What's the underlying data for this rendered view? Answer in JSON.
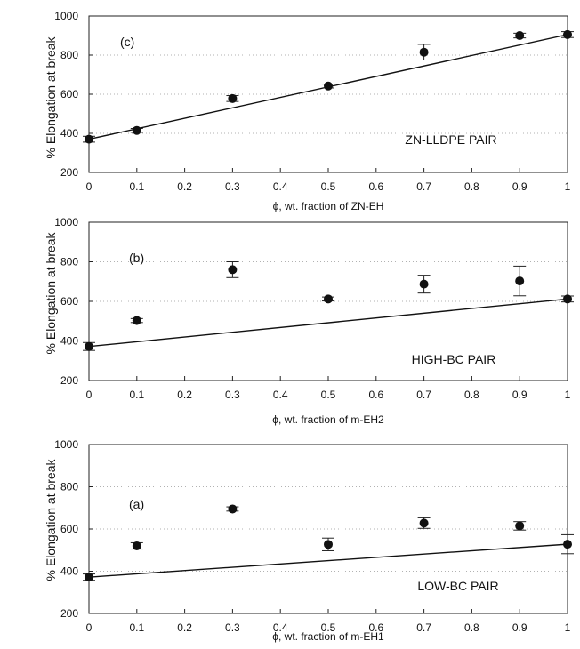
{
  "figure": {
    "ylabel": "% Elongation at break"
  },
  "chart_data": [
    {
      "type": "scatter",
      "panel": "(c)",
      "pair_label": "ZN-LLDPE PAIR",
      "xlabel": "ϕ, wt. fraction of ZN-EH",
      "ylabel": "% Elongation at break",
      "xlim": [
        0,
        1
      ],
      "ylim": [
        200,
        1000
      ],
      "xticks": [
        "0",
        "0.1",
        "0.2",
        "0.3",
        "0.4",
        "0.5",
        "0.6",
        "0.7",
        "0.8",
        "0.9",
        "1"
      ],
      "yticks": [
        "200",
        "400",
        "600",
        "800",
        "1000"
      ],
      "x": [
        0,
        0.1,
        0.3,
        0.5,
        0.7,
        0.9,
        1.0
      ],
      "y": [
        370,
        415,
        578,
        642,
        815,
        900,
        905
      ],
      "err": [
        15,
        10,
        15,
        10,
        40,
        12,
        15
      ],
      "trend": {
        "x": [
          0,
          1
        ],
        "y": [
          370,
          905
        ]
      }
    },
    {
      "type": "scatter",
      "panel": "(b)",
      "pair_label": "HIGH-BC PAIR",
      "xlabel": "ϕ, wt. fraction of m-EH2",
      "ylabel": "% Elongation at break",
      "xlim": [
        0,
        1
      ],
      "ylim": [
        200,
        1000
      ],
      "xticks": [
        "0",
        "0.1",
        "0.2",
        "0.3",
        "0.4",
        "0.5",
        "0.6",
        "0.7",
        "0.8",
        "0.9",
        "1"
      ],
      "yticks": [
        "200",
        "400",
        "600",
        "800",
        "1000"
      ],
      "x": [
        0,
        0.1,
        0.3,
        0.5,
        0.7,
        0.9,
        1.0
      ],
      "y": [
        372,
        503,
        760,
        612,
        687,
        703,
        612
      ],
      "err": [
        20,
        10,
        40,
        10,
        45,
        75,
        15
      ],
      "trend": {
        "x": [
          0,
          1
        ],
        "y": [
          372,
          612
        ]
      }
    },
    {
      "type": "scatter",
      "panel": "(a)",
      "pair_label": "LOW-BC PAIR",
      "xlabel": "ϕ, wt. fraction of m-EH1",
      "ylabel": "% Elongation at break",
      "xlim": [
        0,
        1
      ],
      "ylim": [
        200,
        1000
      ],
      "xticks": [
        "0",
        "0.1",
        "0.2",
        "0.3",
        "0.4",
        "0.5",
        "0.6",
        "0.7",
        "0.8",
        "0.9",
        "1"
      ],
      "yticks": [
        "200",
        "400",
        "600",
        "800",
        "1000"
      ],
      "x": [
        0,
        0.1,
        0.3,
        0.5,
        0.7,
        0.9,
        1.0
      ],
      "y": [
        372,
        520,
        695,
        527,
        628,
        615,
        528
      ],
      "err": [
        15,
        15,
        10,
        30,
        25,
        20,
        45
      ],
      "trend": {
        "x": [
          0,
          1
        ],
        "y": [
          372,
          528
        ]
      }
    }
  ]
}
